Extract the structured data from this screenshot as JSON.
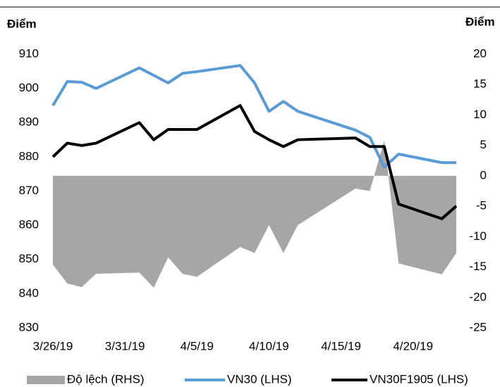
{
  "chart_data": {
    "type": "line",
    "ylabel": "Điểm",
    "y2label": "Điểm",
    "x": [
      "3/26/19",
      "3/27/19",
      "3/28/19",
      "3/29/19",
      "4/1/19",
      "4/2/19",
      "4/3/19",
      "4/4/19",
      "4/5/19",
      "4/8/19",
      "4/9/19",
      "4/10/19",
      "4/11/19",
      "4/12/19",
      "4/16/19",
      "4/17/19",
      "4/18/19",
      "4/19/19",
      "4/22/19",
      "4/23/19"
    ],
    "xlim": [
      "3/26/19",
      "4/23/19"
    ],
    "xticks": [
      "3/26/19",
      "3/31/19",
      "4/5/19",
      "4/10/19",
      "4/15/19",
      "4/20/19"
    ],
    "ylim": [
      830,
      910
    ],
    "yticks": [
      830,
      840,
      850,
      860,
      870,
      880,
      890,
      900,
      910
    ],
    "y2lim": [
      -25,
      20
    ],
    "y2ticks": [
      -25,
      -20,
      -15,
      -10,
      -5,
      0,
      5,
      10,
      15,
      20
    ],
    "legend": "bottom",
    "series": [
      {
        "name": "Độ lệch (RHS)",
        "kind": "area",
        "axis": "y2",
        "color": "#a6a6a6",
        "values": [
          -14.6,
          -17.7,
          -18.3,
          -16.1,
          -15.9,
          -18.4,
          -13.4,
          -16.1,
          -16.6,
          -11.7,
          -12.7,
          -8.1,
          -12.7,
          -8.1,
          -2.1,
          -2.5,
          5.8,
          -14.4,
          -16.2,
          -12.7
        ]
      },
      {
        "name": "VN30 (LHS)",
        "kind": "line",
        "color": "#5b9bd5",
        "values": [
          895,
          902,
          901.8,
          900,
          906,
          903.8,
          901.6,
          904.4,
          904.9,
          906.7,
          901.6,
          893.3,
          896.2,
          893.3,
          887.8,
          885.7,
          877,
          880.8,
          878.3,
          878.3
        ]
      },
      {
        "name": "VN30F1905 (LHS)",
        "kind": "line",
        "color": "#000000",
        "values": [
          880,
          884,
          883.3,
          884,
          890,
          885,
          888,
          888,
          888,
          895,
          887.4,
          885,
          883,
          885,
          885.5,
          883,
          883,
          866.2,
          861.9,
          865.6
        ]
      }
    ]
  }
}
